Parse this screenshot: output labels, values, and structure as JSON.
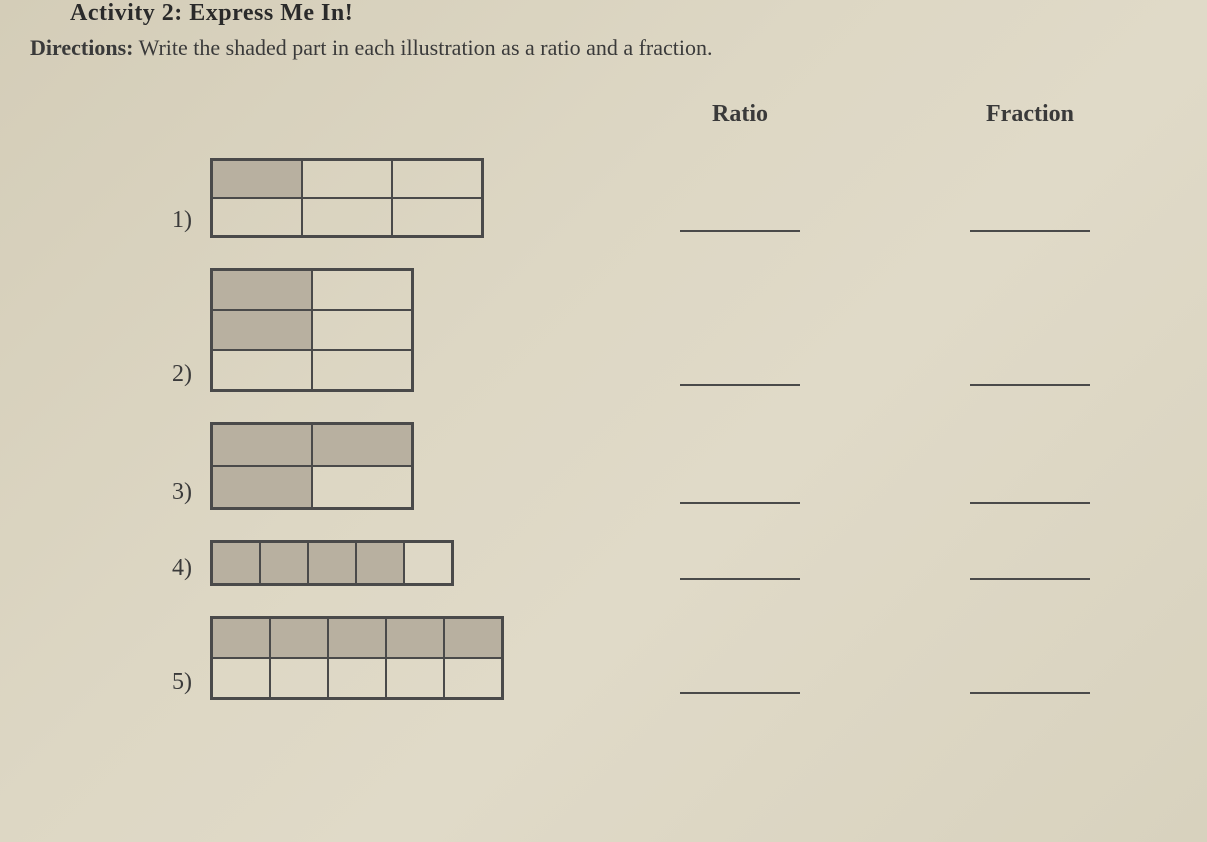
{
  "activity_title": "Activity 2: Express Me In!",
  "directions_label": "Directions:",
  "directions_text": " Write the shaded part in each illustration as a ratio and a fraction.",
  "headers": {
    "ratio": "Ratio",
    "fraction": "Fraction"
  },
  "colors": {
    "paper_bg": "#ddd7c4",
    "border": "#4a4a4a",
    "shaded": "#b8b0a0",
    "unshaded": "transparent",
    "text": "#3a3a3a"
  },
  "items": [
    {
      "number": "1)",
      "grid": {
        "cols": 3,
        "rows": 2,
        "shaded_cells": [
          0
        ]
      }
    },
    {
      "number": "2)",
      "grid": {
        "cols": 2,
        "rows": 3,
        "shaded_cells": [
          0,
          2
        ]
      }
    },
    {
      "number": "3)",
      "grid": {
        "cols": 2,
        "rows": 2,
        "shaded_cells": [
          0,
          1,
          2
        ]
      }
    },
    {
      "number": "4)",
      "grid": {
        "cols": 5,
        "rows": 1,
        "shaded_cells": [
          0,
          1,
          2,
          3
        ]
      }
    },
    {
      "number": "5)",
      "grid": {
        "cols": 5,
        "rows": 2,
        "shaded_cells": [
          0,
          1,
          2,
          3,
          4
        ]
      }
    }
  ]
}
